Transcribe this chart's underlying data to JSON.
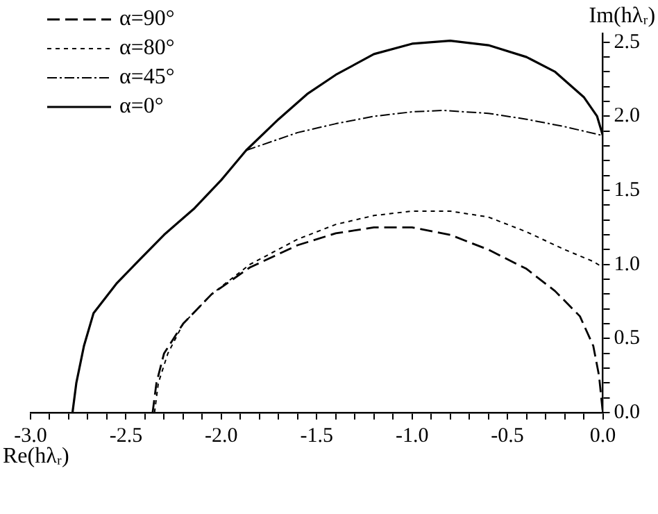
{
  "chart_data": {
    "type": "line",
    "xlabel": "Re(hλᵣ)",
    "ylabel": "Im(hλᵣ)",
    "legend": "top left",
    "marker": "none",
    "grid": false,
    "xlim": [
      -3.0,
      0.0
    ],
    "ylim": [
      0.0,
      2.56
    ],
    "xticks": [
      {
        "value": -3.0,
        "label": "-3.0"
      },
      {
        "value": -2.9,
        "label": null
      },
      {
        "value": -2.8,
        "label": null
      },
      {
        "value": -2.7,
        "label": null
      },
      {
        "value": -2.6,
        "label": null
      },
      {
        "value": -2.5,
        "label": "-2.5"
      },
      {
        "value": -2.4,
        "label": null
      },
      {
        "value": -2.3,
        "label": null
      },
      {
        "value": -2.2,
        "label": null
      },
      {
        "value": -2.1,
        "label": null
      },
      {
        "value": -2.0,
        "label": "-2.0"
      },
      {
        "value": -1.9,
        "label": null
      },
      {
        "value": -1.8,
        "label": null
      },
      {
        "value": -1.7,
        "label": null
      },
      {
        "value": -1.6,
        "label": null
      },
      {
        "value": -1.5,
        "label": "-1.5"
      },
      {
        "value": -1.4,
        "label": null
      },
      {
        "value": -1.3,
        "label": null
      },
      {
        "value": -1.2,
        "label": null
      },
      {
        "value": -1.1,
        "label": null
      },
      {
        "value": -1.0,
        "label": "-1.0"
      },
      {
        "value": -0.9,
        "label": null
      },
      {
        "value": -0.8,
        "label": null
      },
      {
        "value": -0.7,
        "label": null
      },
      {
        "value": -0.6,
        "label": null
      },
      {
        "value": -0.5,
        "label": "-0.5"
      },
      {
        "value": -0.4,
        "label": null
      },
      {
        "value": -0.3,
        "label": null
      },
      {
        "value": -0.2,
        "label": null
      },
      {
        "value": -0.1,
        "label": null
      },
      {
        "value": 0.0,
        "label": "0.0"
      }
    ],
    "yticks": [
      {
        "value": 0.0,
        "label": "0.0"
      },
      {
        "value": 0.1,
        "label": null
      },
      {
        "value": 0.2,
        "label": null
      },
      {
        "value": 0.3,
        "label": null
      },
      {
        "value": 0.4,
        "label": null
      },
      {
        "value": 0.5,
        "label": "0.5"
      },
      {
        "value": 0.6,
        "label": null
      },
      {
        "value": 0.7,
        "label": null
      },
      {
        "value": 0.8,
        "label": null
      },
      {
        "value": 0.9,
        "label": null
      },
      {
        "value": 1.0,
        "label": "1.0"
      },
      {
        "value": 1.1,
        "label": null
      },
      {
        "value": 1.2,
        "label": null
      },
      {
        "value": 1.3,
        "label": null
      },
      {
        "value": 1.4,
        "label": null
      },
      {
        "value": 1.5,
        "label": "1.5"
      },
      {
        "value": 1.6,
        "label": null
      },
      {
        "value": 1.7,
        "label": null
      },
      {
        "value": 1.8,
        "label": null
      },
      {
        "value": 1.9,
        "label": null
      },
      {
        "value": 2.0,
        "label": "2.0"
      },
      {
        "value": 2.1,
        "label": null
      },
      {
        "value": 2.2,
        "label": null
      },
      {
        "value": 2.3,
        "label": null
      },
      {
        "value": 2.4,
        "label": null
      },
      {
        "value": 2.5,
        "label": "2.5"
      }
    ],
    "series": [
      {
        "name": "α=90°",
        "color": "#000000",
        "line_style": "dashed",
        "x": [
          -2.36,
          -2.34,
          -2.3,
          -2.2,
          -2.05,
          -1.85,
          -1.6,
          -1.4,
          -1.2,
          -1.0,
          -0.8,
          -0.6,
          -0.4,
          -0.25,
          -0.12,
          -0.05,
          -0.02,
          0.0
        ],
        "values": [
          0.0,
          0.2,
          0.4,
          0.6,
          0.8,
          0.98,
          1.13,
          1.21,
          1.25,
          1.25,
          1.2,
          1.1,
          0.97,
          0.82,
          0.65,
          0.45,
          0.25,
          0.0
        ]
      },
      {
        "name": "α=80°",
        "color": "#000000",
        "line_style": "dotted",
        "x": [
          -2.35,
          -2.33,
          -2.28,
          -2.2,
          -2.05,
          -1.85,
          -1.6,
          -1.4,
          -1.2,
          -1.0,
          -0.8,
          -0.6,
          -0.4,
          -0.2,
          -0.05,
          0.0
        ],
        "values": [
          0.0,
          0.2,
          0.4,
          0.6,
          0.8,
          1.0,
          1.17,
          1.27,
          1.33,
          1.36,
          1.36,
          1.32,
          1.22,
          1.1,
          1.02,
          0.98
        ]
      },
      {
        "name": "α=45°",
        "color": "#000000",
        "line_style": "dashdot",
        "x": [
          -1.87,
          -1.6,
          -1.4,
          -1.2,
          -1.0,
          -0.84,
          -0.6,
          -0.4,
          -0.2,
          0.0
        ],
        "values": [
          1.77,
          1.89,
          1.95,
          2.0,
          2.03,
          2.04,
          2.02,
          1.98,
          1.93,
          1.87
        ]
      },
      {
        "name": "α=0°",
        "color": "#000000",
        "line_style": "solid",
        "x": [
          -2.78,
          -2.76,
          -2.72,
          -2.67,
          -2.55,
          -2.43,
          -2.3,
          -2.14,
          -2.0,
          -1.87,
          -1.7,
          -1.55,
          -1.4,
          -1.2,
          -1.0,
          -0.8,
          -0.6,
          -0.4,
          -0.25,
          -0.1,
          -0.03,
          0.0
        ],
        "values": [
          0.0,
          0.2,
          0.45,
          0.67,
          0.87,
          1.03,
          1.2,
          1.38,
          1.57,
          1.77,
          1.98,
          2.15,
          2.28,
          2.42,
          2.49,
          2.51,
          2.48,
          2.4,
          2.3,
          2.13,
          2.0,
          1.87
        ]
      }
    ]
  }
}
